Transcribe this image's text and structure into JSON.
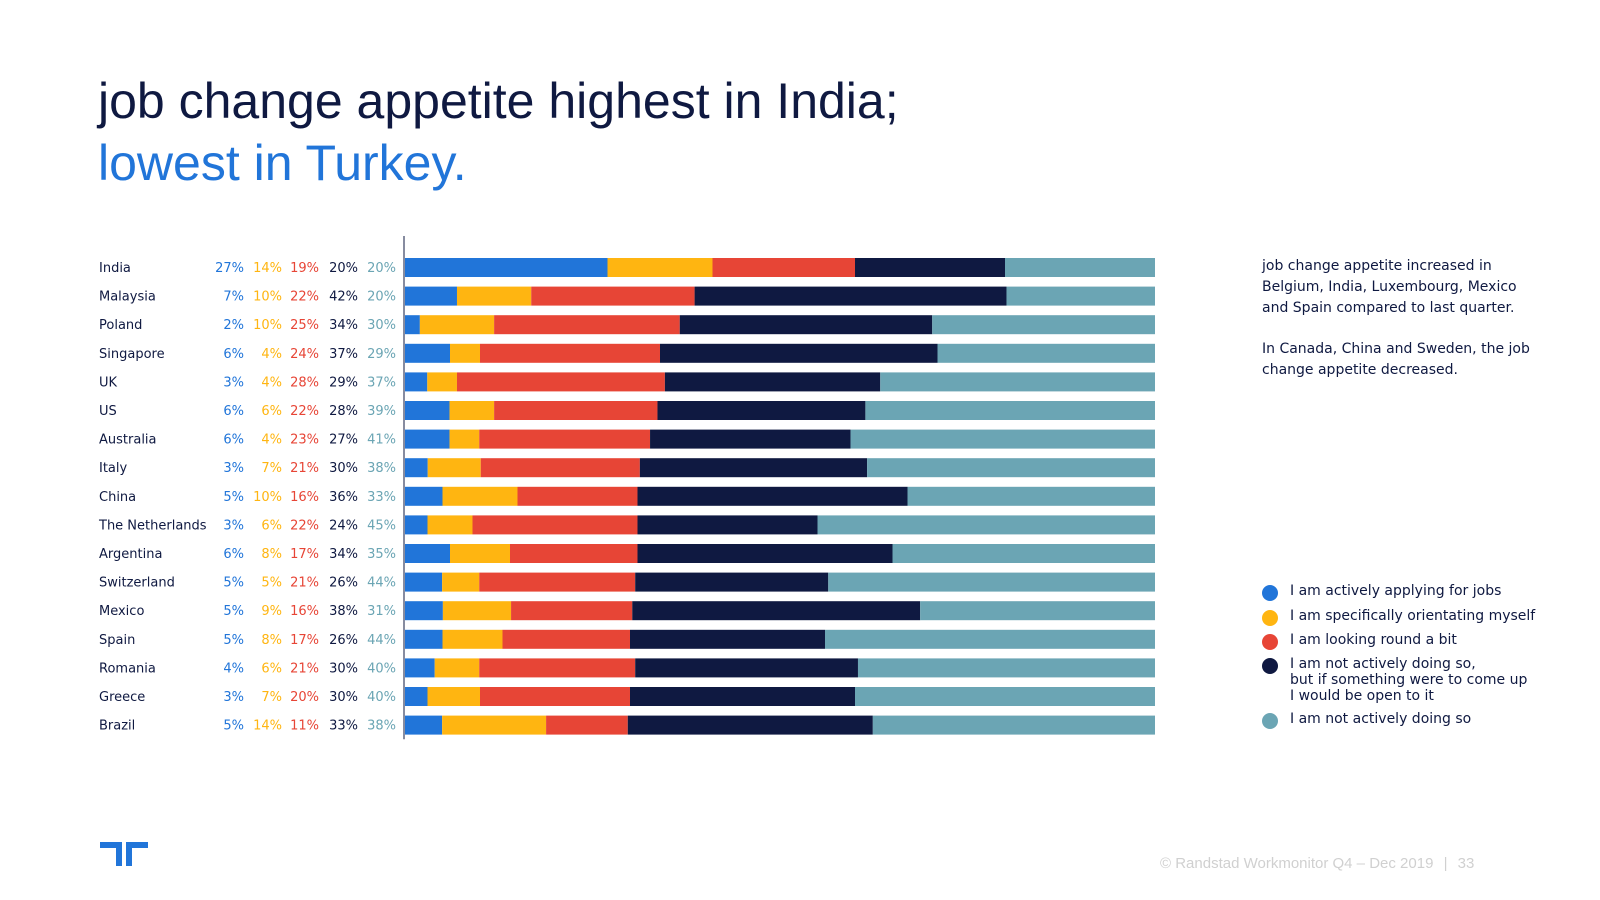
{
  "title": {
    "line1": "job change appetite highest in India;",
    "line2": "lowest in Turkey."
  },
  "note": {
    "p1": "job change appetite increased in Belgium, India, Luxembourg, Mexico and Spain compared to last quarter.",
    "p2": "In Canada, China and Sweden, the job change appetite decreased."
  },
  "footer": {
    "text": "© Randstad Workmonitor Q4 – Dec 2019",
    "separator": "|",
    "page": "33"
  },
  "logo": {
    "icon": "randstad-logo-icon"
  },
  "chart_data": {
    "type": "bar",
    "orientation": "horizontal",
    "stacked": true,
    "normalized": true,
    "categories": [
      "India",
      "Malaysia",
      "Poland",
      "Singapore",
      "UK",
      "US",
      "Australia",
      "Italy",
      "China",
      "The Netherlands",
      "Argentina",
      "Switzerland",
      "Mexico",
      "Spain",
      "Romania",
      "Greece",
      "Brazil"
    ],
    "series": [
      {
        "name": "I am actively applying for jobs",
        "color": "#2175d9",
        "values": [
          27,
          7,
          2,
          6,
          3,
          6,
          6,
          3,
          5,
          3,
          6,
          5,
          5,
          5,
          4,
          3,
          5
        ]
      },
      {
        "name": "I am specifically orientating myself",
        "color": "#ffb511",
        "values": [
          14,
          10,
          10,
          4,
          4,
          6,
          4,
          7,
          10,
          6,
          8,
          5,
          9,
          8,
          6,
          7,
          14
        ]
      },
      {
        "name": "I am looking round a bit",
        "color": "#e74536",
        "values": [
          19,
          22,
          25,
          24,
          28,
          22,
          23,
          21,
          16,
          22,
          17,
          21,
          16,
          17,
          21,
          20,
          11
        ]
      },
      {
        "name": "I am not actively doing so,\nbut if something were to come up\nI would be open to it",
        "color": "#0f1941",
        "values": [
          20,
          42,
          34,
          37,
          29,
          28,
          27,
          30,
          36,
          24,
          34,
          26,
          38,
          26,
          30,
          30,
          33
        ]
      },
      {
        "name": "I am not actively doing so",
        "color": "#6ba5b4",
        "values": [
          20,
          20,
          30,
          29,
          37,
          39,
          41,
          38,
          33,
          45,
          35,
          44,
          31,
          44,
          40,
          40,
          38
        ]
      }
    ],
    "value_label_colors": [
      "#2175d9",
      "#ffb511",
      "#e74536",
      "#0f1941",
      "#6ba5b4"
    ],
    "value_suffix": "%",
    "xlim": [
      0,
      100
    ]
  }
}
